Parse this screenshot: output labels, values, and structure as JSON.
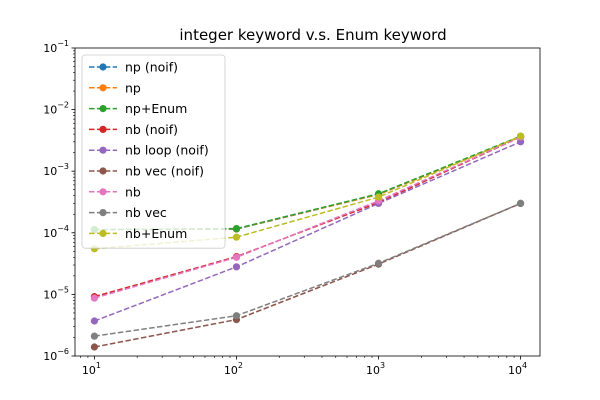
{
  "chart_data": {
    "type": "line",
    "title": "integer keyword v.s. Enum keyword",
    "xlabel": "",
    "ylabel": "",
    "xscale": "log",
    "yscale": "log",
    "xlim": [
      7.3,
      13700
    ],
    "ylim": [
      1e-06,
      0.1
    ],
    "grid": false,
    "legend_position": "upper-left",
    "x": [
      10,
      100,
      1000,
      10000
    ],
    "x_ticks": [
      {
        "value": 10,
        "base": "10",
        "exp": "1"
      },
      {
        "value": 100,
        "base": "10",
        "exp": "2"
      },
      {
        "value": 1000,
        "base": "10",
        "exp": "3"
      },
      {
        "value": 10000,
        "base": "10",
        "exp": "4"
      }
    ],
    "y_ticks": [
      {
        "value": 1e-06,
        "base": "10",
        "exp": "−6"
      },
      {
        "value": 1e-05,
        "base": "10",
        "exp": "−5"
      },
      {
        "value": 0.0001,
        "base": "10",
        "exp": "−4"
      },
      {
        "value": 0.001,
        "base": "10",
        "exp": "−3"
      },
      {
        "value": 0.01,
        "base": "10",
        "exp": "−2"
      },
      {
        "value": 0.1,
        "base": "10",
        "exp": "−1"
      }
    ],
    "series": [
      {
        "name": "np (noif)",
        "color": "#1f77b4",
        "values": [
          0.000112,
          0.000115,
          0.00042,
          0.0036
        ]
      },
      {
        "name": "np",
        "color": "#ff7f0e",
        "values": [
          0.000112,
          0.000116,
          0.00042,
          0.0036
        ]
      },
      {
        "name": "np+Enum",
        "color": "#2ca02c",
        "values": [
          0.000113,
          0.000117,
          0.00043,
          0.0037
        ]
      },
      {
        "name": "nb (noif)",
        "color": "#d62728",
        "values": [
          9.2e-06,
          4.1e-05,
          0.00031,
          0.0036
        ]
      },
      {
        "name": "nb loop (noif)",
        "color": "#9467bd",
        "values": [
          3.7e-06,
          2.8e-05,
          0.0003,
          0.003
        ]
      },
      {
        "name": "nb vec (noif)",
        "color": "#8c564b",
        "values": [
          1.4e-06,
          3.9e-06,
          3.1e-05,
          0.0003
        ]
      },
      {
        "name": "nb",
        "color": "#e377c2",
        "values": [
          8.7e-06,
          4e-05,
          0.00033,
          0.0036
        ]
      },
      {
        "name": "nb vec",
        "color": "#7f7f7f",
        "values": [
          2.1e-06,
          4.5e-06,
          3.2e-05,
          0.0003
        ]
      },
      {
        "name": "nb+Enum",
        "color": "#bcbd22",
        "values": [
          5.5e-05,
          8.5e-05,
          0.00038,
          0.0037
        ]
      }
    ]
  }
}
